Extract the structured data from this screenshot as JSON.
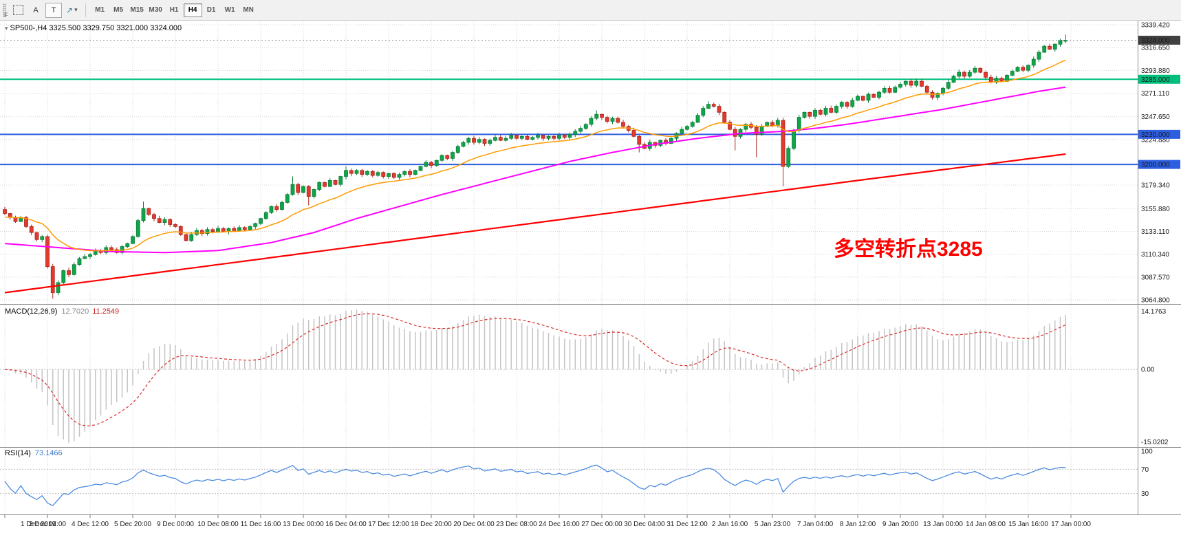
{
  "window": {
    "corner_label": "F"
  },
  "icons": {
    "line_studies_glyph": "↗",
    "dropdown_caret": "▾",
    "title_caret": "▾"
  },
  "toolbar": {
    "tools": {
      "a": "A",
      "t": "T"
    },
    "timeframes": [
      "M1",
      "M5",
      "M15",
      "M30",
      "H1",
      "H4",
      "D1",
      "W1",
      "MN"
    ],
    "active_timeframe": "H4"
  },
  "chart": {
    "title_symbol": "SP500-,H4",
    "title_quote": "3325.500 3329.750 3321.000 3324.000",
    "annotation": {
      "text": "多空转折点3285",
      "color": "#ff0000"
    },
    "price_axis": {
      "min": 3064.8,
      "max": 3339.42,
      "ticks": [
        3339.42,
        3316.65,
        3293.88,
        3271.11,
        3247.65,
        3224.88,
        3179.34,
        3155.88,
        3133.11,
        3110.34,
        3087.57,
        3064.8
      ]
    },
    "levels": [
      {
        "value": 3285.0,
        "label": "3285.000",
        "color": "#00bf7c"
      },
      {
        "value": 3230.0,
        "label": "3230.000",
        "color": "#2e5ee0"
      },
      {
        "value": 3200.0,
        "label": "3200.000",
        "color": "#2e5ee0"
      }
    ],
    "current_price": {
      "value": 3324.0,
      "label": "3324.000"
    }
  },
  "chart_data": {
    "type": "candlestick+indicators",
    "symbol": "SP500-",
    "timeframe": "H4",
    "ohlc_current": {
      "open": 3325.5,
      "high": 3329.75,
      "low": 3321.0,
      "close": 3324.0
    },
    "open_first": 3155,
    "closes": [
      3151,
      3147,
      3143,
      3147,
      3138,
      3132,
      3125,
      3128,
      3098,
      3072,
      3082,
      3094,
      3090,
      3100,
      3106,
      3108,
      3110,
      3114,
      3112,
      3117,
      3115,
      3112,
      3118,
      3121,
      3128,
      3144,
      3156,
      3150,
      3146,
      3142,
      3145,
      3140,
      3138,
      3130,
      3124,
      3130,
      3134,
      3131,
      3135,
      3133,
      3136,
      3133,
      3136,
      3134,
      3137,
      3135,
      3138,
      3141,
      3146,
      3152,
      3158,
      3155,
      3162,
      3170,
      3180,
      3172,
      3178,
      3168,
      3175,
      3182,
      3178,
      3184,
      3180,
      3188,
      3194,
      3191,
      3194,
      3190,
      3193,
      3189,
      3192,
      3188,
      3191,
      3187,
      3190,
      3193,
      3190,
      3194,
      3198,
      3202,
      3199,
      3204,
      3209,
      3206,
      3212,
      3218,
      3222,
      3226,
      3222,
      3225,
      3221,
      3224,
      3227,
      3224,
      3226,
      3229,
      3226,
      3228,
      3225,
      3227,
      3229,
      3226,
      3228,
      3226,
      3229,
      3227,
      3230,
      3233,
      3236,
      3240,
      3246,
      3250,
      3247,
      3243,
      3246,
      3242,
      3238,
      3234,
      3228,
      3220,
      3216,
      3222,
      3219,
      3224,
      3221,
      3226,
      3231,
      3235,
      3238,
      3242,
      3249,
      3256,
      3260,
      3258,
      3252,
      3242,
      3235,
      3228,
      3235,
      3240,
      3237,
      3230,
      3238,
      3242,
      3239,
      3244,
      3198,
      3216,
      3234,
      3247,
      3252,
      3248,
      3254,
      3250,
      3256,
      3252,
      3258,
      3262,
      3258,
      3264,
      3268,
      3264,
      3270,
      3267,
      3272,
      3276,
      3272,
      3277,
      3280,
      3283,
      3279,
      3283,
      3278,
      3272,
      3267,
      3271,
      3276,
      3282,
      3288,
      3292,
      3288,
      3292,
      3296,
      3292,
      3287,
      3282,
      3286,
      3283,
      3289,
      3293,
      3297,
      3294,
      3299,
      3305,
      3312,
      3318,
      3315,
      3320,
      3324,
      3324
    ],
    "extremes": {
      "9": {
        "low": 3066
      },
      "26": {
        "high": 3163
      },
      "54": {
        "high": 3188
      },
      "57": {
        "low": 3159
      },
      "64": {
        "high": 3198
      },
      "111": {
        "high": 3254
      },
      "119": {
        "low": 3212
      },
      "132": {
        "high": 3263
      },
      "137": {
        "low": 3214
      },
      "141": {
        "low": 3207
      },
      "146": {
        "low": 3178
      },
      "199": {
        "high": 3329.75,
        "low": 3321
      }
    },
    "ma_fast": {
      "period": 18,
      "seed": 3147
    },
    "ma_mid": {
      "keypoints": [
        [
          0,
          3121
        ],
        [
          10,
          3117
        ],
        [
          20,
          3113
        ],
        [
          30,
          3112
        ],
        [
          40,
          3114
        ],
        [
          50,
          3122
        ],
        [
          58,
          3132
        ],
        [
          66,
          3146
        ],
        [
          74,
          3158
        ],
        [
          82,
          3170
        ],
        [
          90,
          3181
        ],
        [
          98,
          3192
        ],
        [
          106,
          3203
        ],
        [
          114,
          3212
        ],
        [
          122,
          3220
        ],
        [
          130,
          3226
        ],
        [
          138,
          3231
        ],
        [
          146,
          3233
        ],
        [
          152,
          3236
        ],
        [
          158,
          3240
        ],
        [
          164,
          3245
        ],
        [
          170,
          3250
        ],
        [
          176,
          3255
        ],
        [
          182,
          3261
        ],
        [
          188,
          3267
        ],
        [
          194,
          3273
        ],
        [
          200,
          3278
        ]
      ]
    },
    "ma_slow": {
      "keypoints": [
        [
          0,
          3072
        ],
        [
          40,
          3100
        ],
        [
          80,
          3128
        ],
        [
          120,
          3156
        ],
        [
          160,
          3184
        ],
        [
          200,
          3211
        ]
      ]
    },
    "time_ticks": [
      "1 Dec 2019",
      "3 Dec 04:00",
      "4 Dec 12:00",
      "5 Dec 20:00",
      "9 Dec 00:00",
      "10 Dec 08:00",
      "11 Dec 16:00",
      "13 Dec 00:00",
      "16 Dec 04:00",
      "17 Dec 12:00",
      "18 Dec 20:00",
      "20 Dec 04:00",
      "23 Dec 08:00",
      "24 Dec 16:00",
      "27 Dec 00:00",
      "30 Dec 04:00",
      "31 Dec 12:00",
      "2 Jan 16:00",
      "5 Jan 23:00",
      "7 Jan 04:00",
      "8 Jan 12:00",
      "9 Jan 20:00",
      "13 Jan 00:00",
      "14 Jan 08:00",
      "15 Jan 16:00",
      "17 Jan 00:00"
    ],
    "time_tick_step_bars": 8,
    "macd": {
      "label": "MACD(12,26,9)",
      "value_main": "12.7020",
      "value_signal": "11.2549",
      "fast": 12,
      "slow": 26,
      "signal": 9,
      "axis_max_label": "14.1763",
      "axis_zero_label": "0.00",
      "axis_min_label": "-15.0202"
    },
    "rsi": {
      "label": "RSI(14)",
      "value_label": "73.1466",
      "period": 14,
      "levels": [
        70,
        30
      ],
      "axis_ticks": [
        "100",
        "70",
        "30"
      ]
    }
  },
  "colors": {
    "up": "#0fa64a",
    "up_border": "#0a7d36",
    "down": "#e23a2e",
    "down_border": "#aa241c",
    "grid": "#d9d9d9",
    "separator": "#8c8c8c",
    "ma_fast": "#ff9a00",
    "ma_mid": "#ff00ff",
    "ma_slow": "#ff0000",
    "level_green": "#00bf7c",
    "level_blue": "#2e5ee0",
    "macd_hist": "#c4c4c4",
    "macd_signal": "#d92b2b",
    "rsi_line": "#4c8be0",
    "badge_price": "#404040",
    "current_price_line": "#999999"
  }
}
